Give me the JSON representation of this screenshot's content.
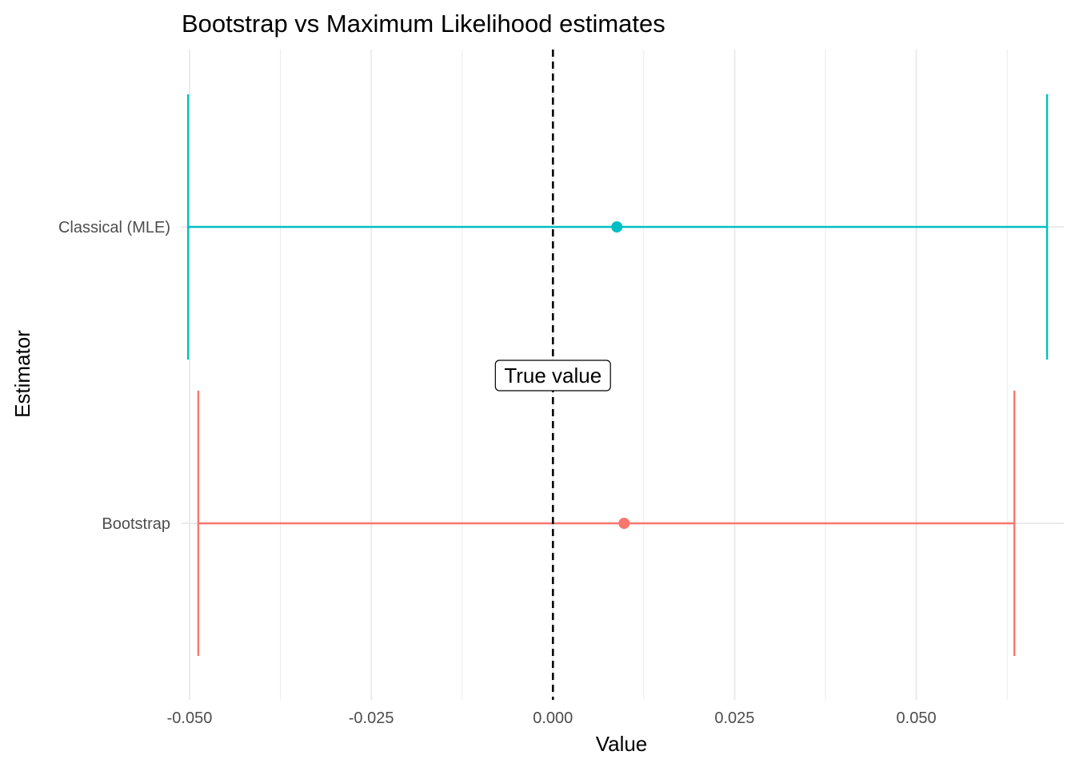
{
  "chart_data": {
    "type": "errorbar",
    "title": "Bootstrap vs Maximum Likelihood estimates",
    "xlabel": "Value",
    "ylabel": "Estimator",
    "xlim": [
      -0.0511,
      0.0703
    ],
    "x_ticks": [
      -0.05,
      -0.025,
      0.0,
      0.025,
      0.05
    ],
    "x_tick_labels": [
      "-0.050",
      "-0.025",
      "0.000",
      "0.025",
      "0.050"
    ],
    "categories": [
      "Bootstrap",
      "Classical (MLE)"
    ],
    "series": [
      {
        "category": "Bootstrap",
        "estimate": 0.0098,
        "lower": -0.0488,
        "upper": 0.0635,
        "color": "#F8766D"
      },
      {
        "category": "Classical (MLE)",
        "estimate": 0.0088,
        "lower": -0.0502,
        "upper": 0.068,
        "color": "#00BFC4"
      }
    ],
    "reference_line": {
      "x": 0.0,
      "style": "dashed",
      "color": "#000000"
    },
    "annotation": {
      "text": "True value",
      "x": 0.0
    },
    "grid": true,
    "legend": "none"
  }
}
